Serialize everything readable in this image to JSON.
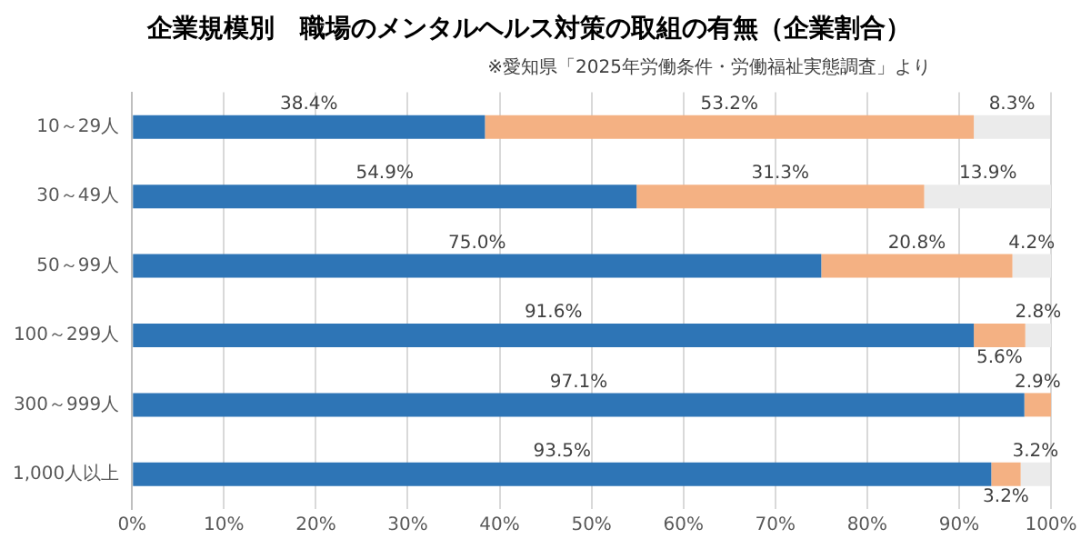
{
  "chart_data": {
    "type": "bar",
    "orientation": "horizontal",
    "stacked": true,
    "title": "企業規模別　職場のメンタルヘルス対策の取組の有無（企業割合）",
    "annotations": [
      "※愛知県「2025年労働条件・労働福祉実態調査」より"
    ],
    "categories": [
      "10～29人",
      "30～49人",
      "50～99人",
      "100～299人",
      "300～999人",
      "1,000人以上"
    ],
    "series": [
      {
        "color": "#2e75b6",
        "values": [
          38.4,
          54.9,
          75.0,
          91.6,
          97.1,
          93.5
        ],
        "value_labels": [
          "38.4%",
          "54.9%",
          "75.0%",
          "91.6%",
          "97.1%",
          "93.5%"
        ]
      },
      {
        "color": "#f4b183",
        "values": [
          53.2,
          31.3,
          20.8,
          5.6,
          2.9,
          3.2
        ],
        "value_labels": [
          "53.2%",
          "31.3%",
          "20.8%",
          "5.6%",
          "2.9%",
          "3.2%"
        ]
      },
      {
        "color": "#ebebeb",
        "values": [
          8.3,
          13.9,
          4.2,
          2.8,
          null,
          3.2
        ],
        "value_labels": [
          "8.3%",
          "13.9%",
          "4.2%",
          "2.8%",
          null,
          "3.2%"
        ]
      }
    ],
    "xlim": [
      0,
      100
    ],
    "xticks": [
      {
        "value": 0,
        "label": "0%"
      },
      {
        "value": 10,
        "label": "10%"
      },
      {
        "value": 20,
        "label": "20%"
      },
      {
        "value": 30,
        "label": "30%"
      },
      {
        "value": 40,
        "label": "40%"
      },
      {
        "value": 50,
        "label": "50%"
      },
      {
        "value": 60,
        "label": "60%"
      },
      {
        "value": 70,
        "label": "70%"
      },
      {
        "value": 80,
        "label": "80%"
      },
      {
        "value": 90,
        "label": "90%"
      },
      {
        "value": 100,
        "label": "100%"
      }
    ],
    "grid": "x",
    "legend": false
  }
}
